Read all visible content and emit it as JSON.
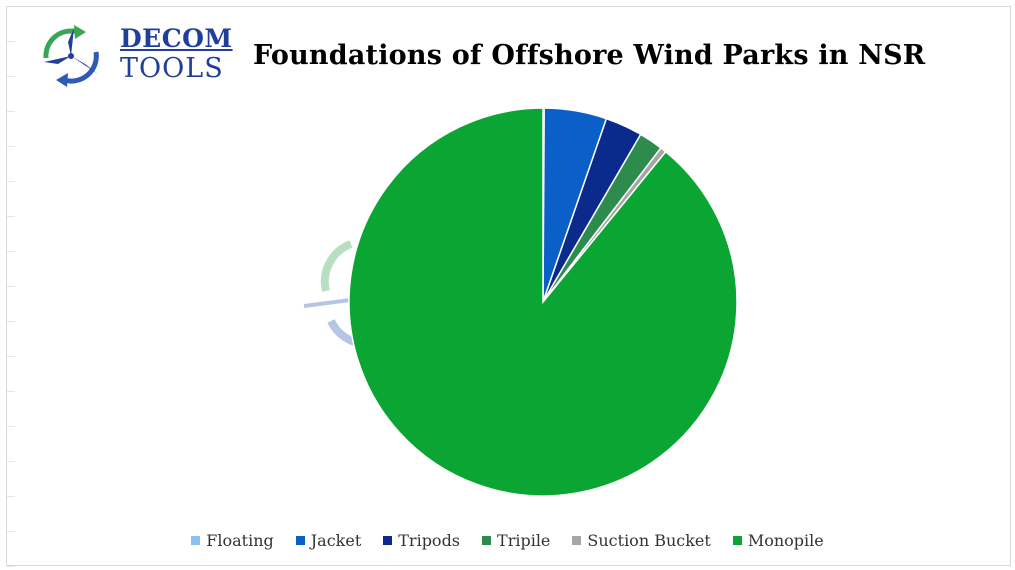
{
  "logo": {
    "line1": "DECOM",
    "line2": "TOOLS",
    "icon": "wind-turbine-recycle-icon"
  },
  "chart_data": {
    "type": "pie",
    "title": "Foundations of Offshore Wind Parks in NSR",
    "start_angle_deg": 0,
    "direction": "clockwise",
    "legend_position": "bottom",
    "series": [
      {
        "name": "Floating",
        "value": 0.1,
        "color": "#8cc0f2"
      },
      {
        "name": "Jacket",
        "value": 5.2,
        "color": "#0b5fc9"
      },
      {
        "name": "Tripods",
        "value": 3.1,
        "color": "#0a2a8c"
      },
      {
        "name": "Tripile",
        "value": 2.0,
        "color": "#2e8b4e"
      },
      {
        "name": "Suction Bucket",
        "value": 0.5,
        "color": "#a6a6a6"
      },
      {
        "name": "Monopile",
        "value": 89.1,
        "color": "#0aa533"
      }
    ]
  }
}
